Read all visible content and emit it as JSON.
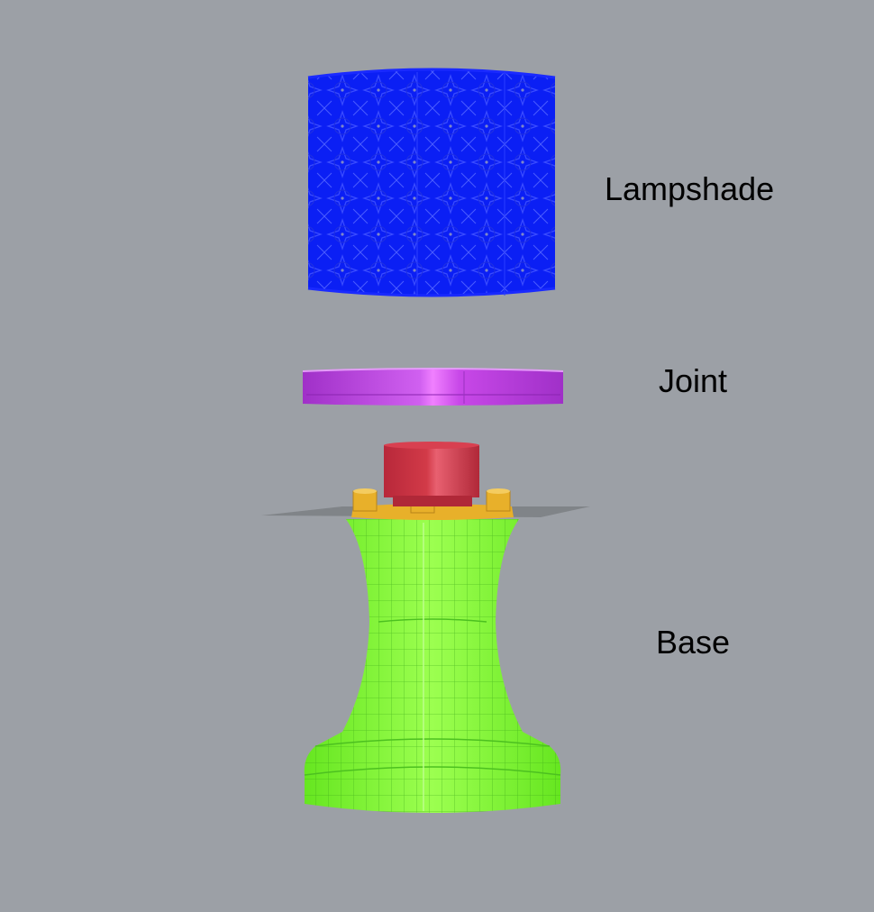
{
  "labels": {
    "lampshade": "Lampshade",
    "joint": "Joint",
    "base": "Base"
  },
  "colors": {
    "background": "#9ca0a6",
    "lampshade": "#0a1ef5",
    "joint": "#c040e0",
    "connector": "#c8323c",
    "pegs": "#e8b02a",
    "base": "#7cf530",
    "ground_plane": "#808488"
  },
  "parts": [
    "Lampshade",
    "Joint",
    "Base"
  ]
}
